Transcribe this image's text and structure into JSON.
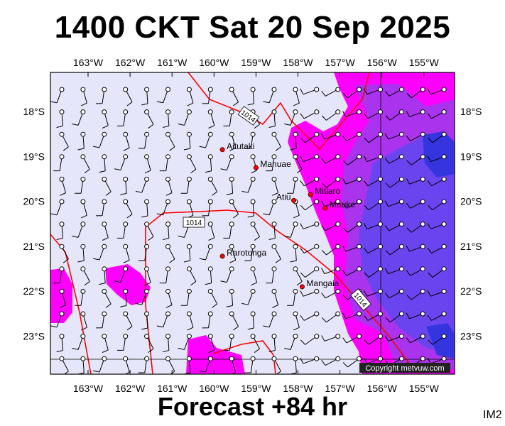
{
  "title": "1400 CKT Sat 20 Sep 2025",
  "footer": "Forecast +84 hr",
  "tag": "IM2",
  "copyright": "Copyright metvuw.com",
  "lon_labels": [
    "163°W",
    "162°W",
    "161°W",
    "160°W",
    "159°W",
    "158°W",
    "157°W",
    "156°W",
    "155°W"
  ],
  "lat_labels": [
    "18°S",
    "19°S",
    "20°S",
    "21°S",
    "22°S",
    "23°S"
  ],
  "isobar_label": "1014",
  "places": [
    {
      "name": "Aitutaki",
      "lon": -159.8,
      "lat": -18.85
    },
    {
      "name": "Manuae",
      "lon": -159.0,
      "lat": -19.25
    },
    {
      "name": "Atiu",
      "lon": -158.1,
      "lat": -19.98
    },
    {
      "name": "Mitiaro",
      "lon": -157.7,
      "lat": -19.85
    },
    {
      "name": "Mauke",
      "lon": -157.35,
      "lat": -20.15
    },
    {
      "name": "Rarotonga",
      "lon": -159.8,
      "lat": -21.22
    },
    {
      "name": "Mangaia",
      "lon": -157.9,
      "lat": -21.9
    }
  ],
  "colors": {
    "sea": "#e6e6fa",
    "magenta": "#ff00ff",
    "violet": "#aa33ee",
    "purple": "#6a44ee",
    "blue": "#3535e0",
    "isobar": "#ff0000",
    "place_dot": "#ff0000"
  }
}
